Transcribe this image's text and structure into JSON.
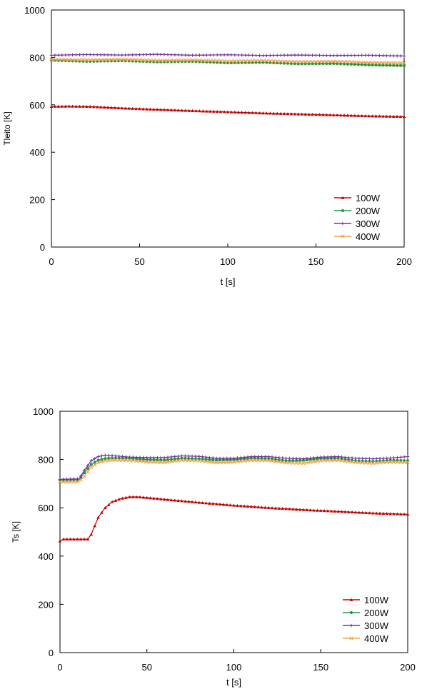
{
  "chart_data": [
    {
      "type": "line",
      "title": "",
      "xlabel": "t [s]",
      "ylabel": "Tleito [K]",
      "xlim": [
        0,
        200
      ],
      "ylim": [
        0,
        1000
      ],
      "xticks": [
        0,
        50,
        100,
        150,
        200
      ],
      "yticks": [
        0,
        200,
        400,
        600,
        800,
        1000
      ],
      "grid": false,
      "legend": "bottom-right",
      "series": [
        {
          "name": "100W",
          "color": "#c00000",
          "marker": "triangle",
          "x": [
            0,
            10,
            20,
            40,
            60,
            80,
            100,
            120,
            140,
            160,
            180,
            200
          ],
          "y": [
            593,
            594,
            593,
            586,
            580,
            575,
            570,
            565,
            561,
            557,
            553,
            550
          ]
        },
        {
          "name": "200W",
          "color": "#1a9a40",
          "marker": "circle",
          "x": [
            0,
            20,
            40,
            60,
            80,
            100,
            120,
            140,
            160,
            180,
            200
          ],
          "y": [
            788,
            783,
            786,
            781,
            783,
            777,
            779,
            773,
            774,
            768,
            765
          ]
        },
        {
          "name": "300W",
          "color": "#7030a0",
          "marker": "plus",
          "x": [
            0,
            20,
            40,
            60,
            80,
            100,
            120,
            140,
            160,
            180,
            200
          ],
          "y": [
            809,
            812,
            810,
            813,
            809,
            811,
            808,
            810,
            808,
            809,
            806
          ]
        },
        {
          "name": "400W",
          "color": "#f0a050",
          "marker": "x",
          "x": [
            0,
            20,
            40,
            60,
            80,
            100,
            120,
            140,
            160,
            180,
            200
          ],
          "y": [
            792,
            789,
            792,
            787,
            789,
            784,
            786,
            781,
            783,
            778,
            776
          ]
        }
      ]
    },
    {
      "type": "line",
      "title": "",
      "xlabel": "t [s]",
      "ylabel": "Ts [K]",
      "xlim": [
        0,
        200
      ],
      "ylim": [
        0,
        1000
      ],
      "xticks": [
        0,
        50,
        100,
        150,
        200
      ],
      "yticks": [
        0,
        200,
        400,
        600,
        800,
        1000
      ],
      "grid": false,
      "legend": "bottom-right",
      "series": [
        {
          "name": "100W",
          "color": "#c00000",
          "marker": "triangle",
          "x": [
            0,
            2,
            10,
            16,
            18,
            22,
            26,
            30,
            35,
            40,
            45,
            50,
            60,
            80,
            100,
            120,
            140,
            160,
            180,
            200
          ],
          "y": [
            462,
            470,
            470,
            470,
            490,
            560,
            600,
            625,
            638,
            645,
            645,
            642,
            635,
            622,
            610,
            600,
            592,
            585,
            578,
            573
          ]
        },
        {
          "name": "200W",
          "color": "#1a9a40",
          "marker": "circle",
          "x": [
            0,
            11,
            14,
            18,
            22,
            26,
            30,
            40,
            50,
            60,
            70,
            80,
            90,
            100,
            110,
            120,
            130,
            140,
            150,
            160,
            170,
            180,
            190,
            200
          ],
          "y": [
            715,
            716,
            745,
            780,
            797,
            804,
            806,
            805,
            800,
            798,
            805,
            803,
            798,
            800,
            806,
            804,
            795,
            797,
            805,
            805,
            795,
            792,
            797,
            795
          ]
        },
        {
          "name": "300W",
          "color": "#7030a0",
          "marker": "plus",
          "x": [
            0,
            11,
            14,
            18,
            22,
            26,
            30,
            40,
            50,
            60,
            70,
            80,
            90,
            100,
            110,
            120,
            130,
            140,
            150,
            160,
            170,
            180,
            190,
            200
          ],
          "y": [
            718,
            720,
            755,
            795,
            812,
            818,
            816,
            810,
            808,
            808,
            815,
            813,
            805,
            805,
            812,
            812,
            805,
            803,
            810,
            812,
            805,
            803,
            806,
            812
          ]
        },
        {
          "name": "400W",
          "color": "#f0a050",
          "marker": "x",
          "x": [
            0,
            11,
            14,
            18,
            22,
            26,
            30,
            40,
            50,
            60,
            70,
            80,
            90,
            100,
            110,
            120,
            130,
            140,
            150,
            160,
            170,
            180,
            190,
            200
          ],
          "y": [
            707,
            708,
            730,
            768,
            787,
            795,
            798,
            797,
            790,
            788,
            797,
            795,
            787,
            790,
            797,
            796,
            787,
            785,
            795,
            797,
            788,
            785,
            790,
            788
          ]
        }
      ]
    }
  ]
}
